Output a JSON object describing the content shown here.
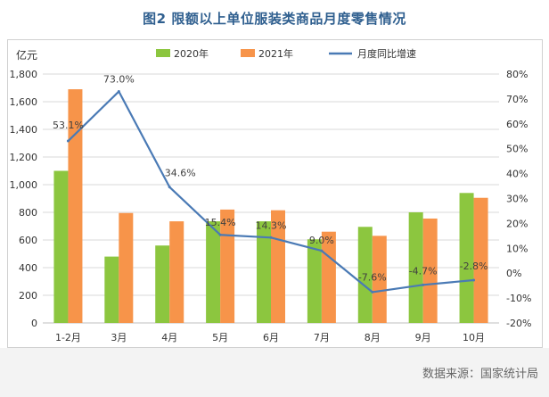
{
  "title": "图2  限额以上单位服装类商品月度零售情况",
  "source": "数据来源：国家统计局",
  "colors": {
    "s2020": "#8cc63f",
    "s2021": "#f7944a",
    "growth": "#4a7ab5",
    "grid": "#d9d9d9",
    "text": "#333333"
  },
  "chart_data": {
    "type": "bar",
    "categories": [
      "1-2月",
      "3月",
      "4月",
      "5月",
      "6月",
      "7月",
      "8月",
      "9月",
      "10月"
    ],
    "y_left_unit": "亿元",
    "y_left_range": [
      0,
      1800
    ],
    "y_left_ticks": [
      "0",
      "200",
      "400",
      "600",
      "800",
      "1,000",
      "1,200",
      "1,400",
      "1,600",
      "1,800"
    ],
    "y_right_range": [
      -20,
      80
    ],
    "y_right_ticks": [
      "-20%",
      "-10%",
      "0%",
      "10%",
      "20%",
      "30%",
      "40%",
      "50%",
      "60%",
      "70%",
      "80%"
    ],
    "legend_position": "top",
    "grid": true,
    "series": [
      {
        "name": "2020年",
        "type": "bar",
        "axis": "left",
        "values": [
          1100,
          480,
          560,
          735,
          735,
          605,
          695,
          800,
          940
        ]
      },
      {
        "name": "2021年",
        "type": "bar",
        "axis": "left",
        "values": [
          1690,
          795,
          735,
          820,
          815,
          660,
          630,
          755,
          905
        ]
      },
      {
        "name": "月度同比增速",
        "type": "line",
        "axis": "right",
        "values": [
          53.1,
          73.0,
          34.6,
          15.4,
          14.3,
          9.0,
          -7.6,
          -4.7,
          -2.8
        ],
        "labels": [
          "53.1%",
          "73.0%",
          "34.6%",
          "15.4%",
          "14.3%",
          "9.0%",
          "-7.6%",
          "-4.7%",
          "-2.8%"
        ]
      }
    ]
  }
}
